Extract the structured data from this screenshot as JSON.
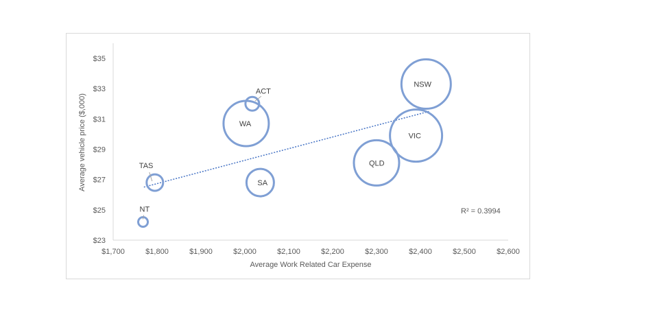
{
  "chart_data": {
    "type": "scatter",
    "subtype": "bubble",
    "xlabel": "Average Work Related Car Expense",
    "ylabel": "Average vehicle price ($,000)",
    "xlim": [
      1700,
      2600
    ],
    "ylim": [
      23,
      35
    ],
    "x_ticks": [
      "$1,700",
      "$1,800",
      "$1,900",
      "$2,000",
      "$2,100",
      "$2,200",
      "$2,300",
      "$2,400",
      "$2,500",
      "$2,600"
    ],
    "y_ticks": [
      "$23",
      "$25",
      "$27",
      "$29",
      "$31",
      "$33",
      "$35"
    ],
    "bubble_color": "#7f9fd4",
    "trendline": {
      "type": "linear",
      "style": "dotted",
      "color": "#4472c4",
      "x_range": [
        1770,
        2420
      ],
      "y_range": [
        26.5,
        31.5
      ]
    },
    "r_squared_label": "R² = 0.3994",
    "points": [
      {
        "label": "NSW",
        "x": 2413,
        "y": 33.3,
        "size": 36
      },
      {
        "label": "VIC",
        "x": 2390,
        "y": 29.9,
        "size": 38
      },
      {
        "label": "QLD",
        "x": 2300,
        "y": 28.1,
        "size": 33
      },
      {
        "label": "WA",
        "x": 2003,
        "y": 30.7,
        "size": 33
      },
      {
        "label": "SA",
        "x": 2035,
        "y": 26.8,
        "size": 20
      },
      {
        "label": "ACT",
        "x": 2017,
        "y": 32.0,
        "size": 10
      },
      {
        "label": "TAS",
        "x": 1795,
        "y": 26.8,
        "size": 12
      },
      {
        "label": "NT",
        "x": 1768,
        "y": 24.2,
        "size": 7
      }
    ]
  }
}
